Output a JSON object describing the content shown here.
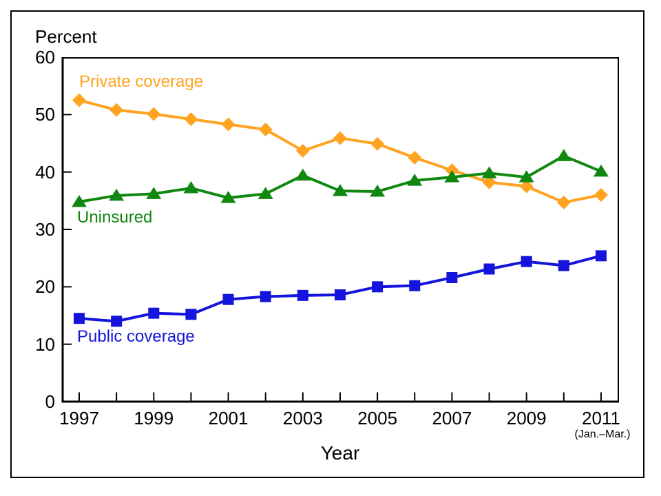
{
  "figure": {
    "yaxis_unit_label": "Percent",
    "xaxis_title": "Year",
    "xaxis_note": "(Jan.–Mar.)"
  },
  "colors": {
    "axis": "#000000",
    "private": "#ffa320",
    "uninsured": "#108810",
    "public": "#1414dd"
  },
  "chart_data": {
    "type": "line",
    "title": "",
    "xlabel": "Year",
    "ylabel": "Percent",
    "ylim": [
      0,
      60
    ],
    "yticks": [
      0,
      10,
      20,
      30,
      40,
      50,
      60
    ],
    "grid": false,
    "legend_position": "inline-labels",
    "x": [
      1997,
      1998,
      1999,
      2000,
      2001,
      2002,
      2003,
      2004,
      2005,
      2006,
      2007,
      2008,
      2009,
      2010,
      2011
    ],
    "xtick_labels": [
      "1997",
      "1999",
      "2001",
      "2003",
      "2005",
      "2007",
      "2009",
      "2011"
    ],
    "xtick_label_every": 2,
    "last_point_note": "(Jan.–Mar.)",
    "series": [
      {
        "name": "Private coverage",
        "color": "#ffa320",
        "marker": "diamond",
        "values": [
          52.5,
          50.8,
          50.1,
          49.2,
          48.3,
          47.4,
          43.7,
          45.9,
          44.9,
          42.5,
          40.3,
          38.2,
          37.5,
          34.7,
          36.0
        ]
      },
      {
        "name": "Uninsured",
        "color": "#108810",
        "marker": "triangle",
        "values": [
          34.8,
          35.9,
          36.2,
          37.2,
          35.5,
          36.2,
          39.4,
          36.7,
          36.6,
          38.5,
          39.1,
          39.8,
          39.1,
          42.8,
          40.1
        ]
      },
      {
        "name": "Public coverage",
        "color": "#1414dd",
        "marker": "square",
        "values": [
          14.5,
          14.0,
          15.4,
          15.2,
          17.8,
          18.3,
          18.5,
          18.6,
          20.0,
          20.2,
          21.6,
          23.1,
          24.4,
          23.7,
          25.4
        ]
      }
    ]
  }
}
